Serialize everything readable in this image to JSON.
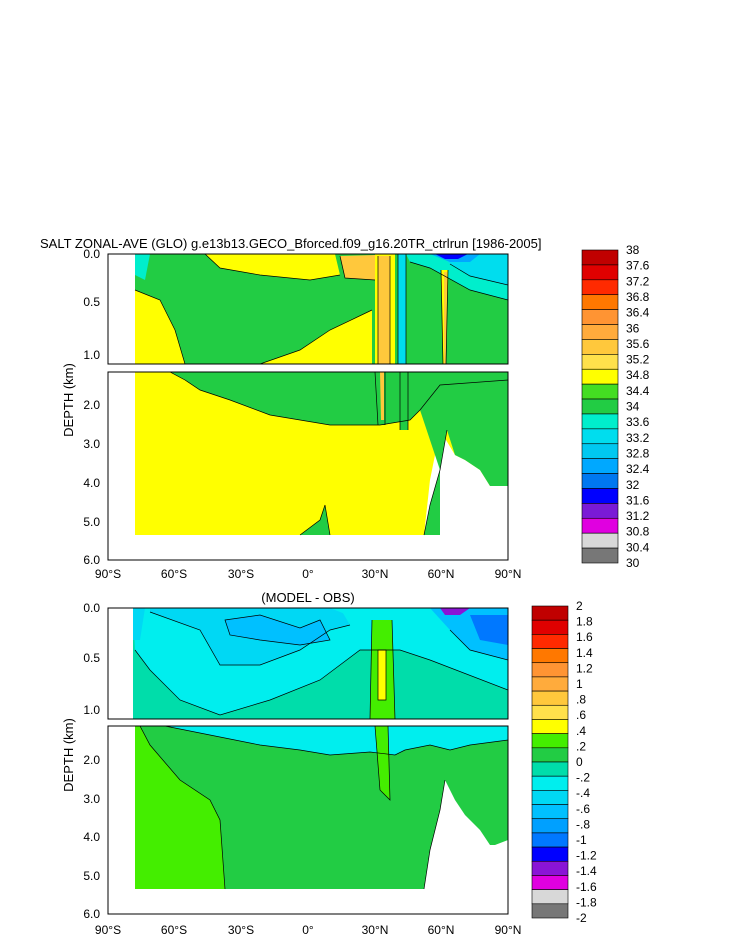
{
  "chart_data": [
    {
      "type": "heatmap",
      "title": "SALT ZONAL-AVE (GLO) g.e13b13.GECO_Bforced.f09_g16.20TR_ctrlrun [1986-2005]",
      "ylabel": "DEPTH (km)",
      "xlabel": "",
      "x_tick_labels": [
        "90°S",
        "60°S",
        "30°S",
        "0°",
        "30°N",
        "60°N",
        "90°N"
      ],
      "x_ticks": [
        -90,
        -60,
        -30,
        0,
        30,
        60,
        90
      ],
      "xlim": [
        -90,
        90
      ],
      "upper_panel": {
        "ylim": [
          0,
          1.15
        ],
        "y_ticks": [
          0.0,
          0.5,
          1.0
        ],
        "y_tick_labels": [
          "0.0",
          "0.5",
          "1.0"
        ]
      },
      "lower_panel": {
        "ylim": [
          1.15,
          6.0
        ],
        "y_ticks": [
          2.0,
          3.0,
          4.0,
          5.0,
          6.0
        ],
        "y_tick_labels": [
          "2.0",
          "3.0",
          "4.0",
          "5.0",
          "6.0"
        ]
      },
      "colorbar": {
        "labels": [
          "38",
          "37.6",
          "37.2",
          "36.8",
          "36.4",
          "36",
          "35.6",
          "35.2",
          "34.8",
          "34.4",
          "34",
          "33.6",
          "33.2",
          "32.8",
          "32.4",
          "32",
          "31.6",
          "31.2",
          "30.8",
          "30.4",
          "30"
        ],
        "colors": [
          "#c00000",
          "#e00000",
          "#ff2a00",
          "#ff7800",
          "#ff9433",
          "#ffab3c",
          "#ffc83c",
          "#ffe14b",
          "#ffff00",
          "#44dd22",
          "#22cc44",
          "#00eecc",
          "#00ddee",
          "#00c8f0",
          "#00a8ff",
          "#0078f0",
          "#0000ff",
          "#7a1ad6",
          "#e000e0",
          "#d8d8d8",
          "#777777"
        ]
      }
    },
    {
      "type": "heatmap",
      "title": "(MODEL - OBS)",
      "ylabel": "DEPTH (km)",
      "xlabel": "",
      "x_tick_labels": [
        "90°S",
        "60°S",
        "30°S",
        "0°",
        "30°N",
        "60°N",
        "90°N"
      ],
      "x_ticks": [
        -90,
        -60,
        -30,
        0,
        30,
        60,
        90
      ],
      "xlim": [
        -90,
        90
      ],
      "upper_panel": {
        "ylim": [
          0,
          1.15
        ],
        "y_ticks": [
          0.0,
          0.5,
          1.0
        ],
        "y_tick_labels": [
          "0.0",
          "0.5",
          "1.0"
        ]
      },
      "lower_panel": {
        "ylim": [
          1.15,
          6.0
        ],
        "y_ticks": [
          2.0,
          3.0,
          4.0,
          5.0,
          6.0
        ],
        "y_tick_labels": [
          "2.0",
          "3.0",
          "4.0",
          "5.0",
          "6.0"
        ]
      },
      "colorbar": {
        "labels": [
          "2",
          "1.8",
          "1.6",
          "1.4",
          "1.2",
          "1",
          ".8",
          ".6",
          ".4",
          ".2",
          "0",
          "-.2",
          "-.4",
          "-.6",
          "-.8",
          "-1",
          "-1.2",
          "-1.4",
          "-1.6",
          "-1.8",
          "-2"
        ],
        "colors": [
          "#c00000",
          "#e00000",
          "#ff2a00",
          "#ff7800",
          "#ff9433",
          "#ffab3c",
          "#ffc83c",
          "#ffe14b",
          "#ffff00",
          "#44ee00",
          "#22cc44",
          "#00ddaa",
          "#00eeee",
          "#00d8f4",
          "#00c0ff",
          "#00a0ff",
          "#0078ff",
          "#0000ff",
          "#8a14d6",
          "#e000e0",
          "#d8d8d8",
          "#777777"
        ]
      }
    }
  ]
}
